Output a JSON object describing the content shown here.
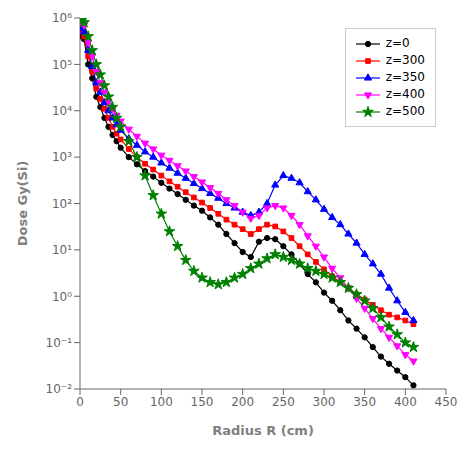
{
  "chart_data": {
    "type": "line",
    "title": "",
    "xlabel": "Radius R (cm)",
    "ylabel": "Dose Gy(Si)",
    "log": "y",
    "grid": false,
    "legend": "upper right",
    "xlim": [
      0,
      450
    ],
    "xticks": [
      0,
      50,
      100,
      150,
      200,
      250,
      300,
      350,
      400,
      450
    ],
    "ylim": [
      0.01,
      1000000
    ],
    "yticks": [
      {
        "value": 0.01,
        "label": "10⁻²"
      },
      {
        "value": 0.1,
        "label": "10⁻¹"
      },
      {
        "value": 1,
        "label": "10⁰"
      },
      {
        "value": 10,
        "label": "10¹"
      },
      {
        "value": 100,
        "label": "10²"
      },
      {
        "value": 1000,
        "label": "10³"
      },
      {
        "value": 10000,
        "label": "10⁴"
      },
      {
        "value": 100000,
        "label": "10⁵"
      },
      {
        "value": 1000000,
        "label": "10⁶"
      }
    ],
    "x": [
      2,
      5,
      10,
      15,
      20,
      25,
      30,
      35,
      40,
      45,
      50,
      60,
      70,
      80,
      90,
      100,
      110,
      120,
      130,
      140,
      150,
      160,
      170,
      180,
      190,
      200,
      210,
      220,
      230,
      240,
      250,
      260,
      270,
      280,
      290,
      300,
      310,
      320,
      330,
      340,
      350,
      360,
      370,
      380,
      390,
      400,
      410
    ],
    "series": [
      {
        "name": "z=0",
        "color": "black",
        "marker": "circle",
        "values": [
          400000.0,
          350000.0,
          100000.0,
          50000.0,
          20000.0,
          12000.0,
          7000,
          4500,
          3000,
          2200,
          1600,
          1000,
          700,
          500,
          380,
          280,
          210,
          160,
          120,
          90,
          70,
          50,
          35,
          22,
          14,
          9,
          7,
          15,
          18,
          17,
          12,
          8,
          5,
          3,
          2,
          1.2,
          0.8,
          0.5,
          0.3,
          0.2,
          0.13,
          0.08,
          0.05,
          0.035,
          0.025,
          0.018,
          0.012
        ]
      },
      {
        "name": "z=300",
        "color": "red",
        "marker": "square",
        "values": [
          500000.0,
          400000.0,
          150000.0,
          70000.0,
          30000.0,
          18000.0,
          11000.0,
          7000,
          4500,
          3200,
          2400,
          1500,
          1000,
          720,
          540,
          400,
          300,
          230,
          175,
          135,
          105,
          80,
          60,
          45,
          35,
          28,
          22,
          28,
          35,
          32,
          25,
          18,
          12,
          8,
          5.5,
          3.8,
          2.7,
          2.0,
          1.5,
          1.1,
          0.85,
          0.65,
          0.5,
          0.4,
          0.35,
          0.3,
          0.25
        ]
      },
      {
        "name": "z=350",
        "color": "blue",
        "marker": "triangle-up",
        "values": [
          600000.0,
          500000.0,
          200000.0,
          90000.0,
          40000.0,
          25000.0,
          15000.0,
          10000.0,
          7000,
          5000,
          3800,
          2500,
          1800,
          1300,
          1000,
          750,
          580,
          450,
          350,
          270,
          210,
          165,
          130,
          100,
          80,
          65,
          55,
          65,
          100,
          250,
          400,
          350,
          280,
          180,
          120,
          75,
          50,
          35,
          22,
          14,
          8,
          5,
          3,
          1.5,
          0.8,
          0.45,
          0.3
        ]
      },
      {
        "name": "z=400",
        "color": "magenta",
        "marker": "triangle-down",
        "values": [
          800000.0,
          700000.0,
          300000.0,
          150000.0,
          70000.0,
          40000.0,
          25000.0,
          16000.0,
          11000.0,
          8000,
          6000,
          4000,
          2800,
          2000,
          1500,
          1100,
          850,
          650,
          500,
          380,
          290,
          220,
          165,
          120,
          90,
          65,
          48,
          55,
          80,
          90,
          80,
          55,
          35,
          20,
          12,
          7,
          4,
          2.5,
          1.5,
          0.9,
          0.55,
          0.33,
          0.2,
          0.13,
          0.085,
          0.055,
          0.04
        ]
      },
      {
        "name": "z=500",
        "color": "green",
        "marker": "star",
        "values": [
          900000.0,
          800000.0,
          400000.0,
          200000.0,
          100000.0,
          60000.0,
          35000.0,
          20000.0,
          12000.0,
          7000,
          4500,
          2200,
          1000,
          400,
          150,
          60,
          25,
          12,
          6,
          3.5,
          2.5,
          2,
          1.8,
          2,
          2.5,
          3,
          4,
          5,
          6.5,
          8,
          7,
          6,
          5,
          4,
          3.5,
          3,
          2.5,
          2,
          1.5,
          1.1,
          0.8,
          0.55,
          0.35,
          0.22,
          0.15,
          0.1,
          0.08
        ]
      }
    ]
  }
}
